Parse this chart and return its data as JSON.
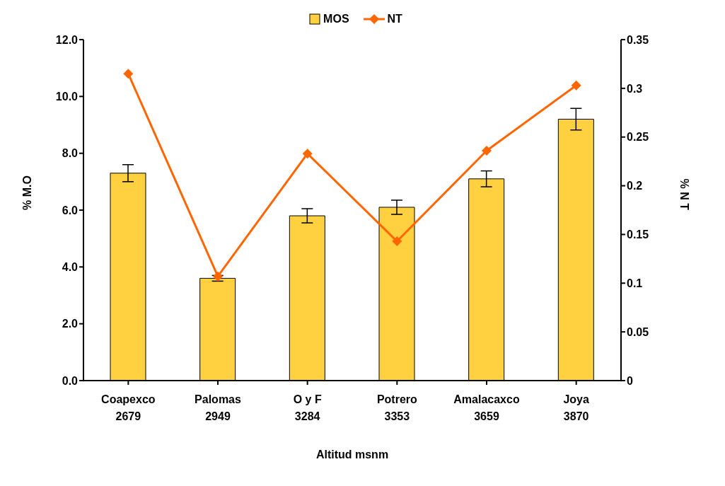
{
  "chart_data": {
    "type": "bar",
    "xlabel": "Altitud  msnm",
    "ylabel": "% M.O",
    "y2label": "% N T",
    "categories": [
      "Coapexco\n2679",
      "Palomas\n2949",
      "O y F\n3284",
      "Potrero\n3353",
      "Amalacaxco\n3659",
      "Joya\n3870"
    ],
    "series": [
      {
        "name": "MOS",
        "color": "#ffd040",
        "values": [
          7.3,
          3.6,
          5.8,
          6.1,
          7.1,
          9.2
        ],
        "errors": [
          0.3,
          0.1,
          0.25,
          0.25,
          0.28,
          0.38
        ]
      },
      {
        "name": "NT",
        "type": "line",
        "axis": "y2",
        "color": "#ff6600",
        "marker": "diamond",
        "values": [
          0.315,
          0.107,
          0.233,
          0.143,
          0.236,
          0.303
        ]
      }
    ],
    "ylim": [
      0,
      12
    ],
    "yticks": [
      {
        "value": 0,
        "label": "0.0"
      },
      {
        "value": 2,
        "label": "2.0"
      },
      {
        "value": 4,
        "label": "4.0"
      },
      {
        "value": 6,
        "label": "6.0"
      },
      {
        "value": 8,
        "label": "8.0"
      },
      {
        "value": 10,
        "label": "10.0"
      },
      {
        "value": 12,
        "label": "12.0"
      }
    ],
    "y2lim": [
      0,
      0.35
    ],
    "y2ticks": [
      0,
      0.05,
      0.1,
      0.15,
      0.2,
      0.25,
      0.3,
      0.35
    ],
    "grid": false,
    "legend": "top"
  }
}
